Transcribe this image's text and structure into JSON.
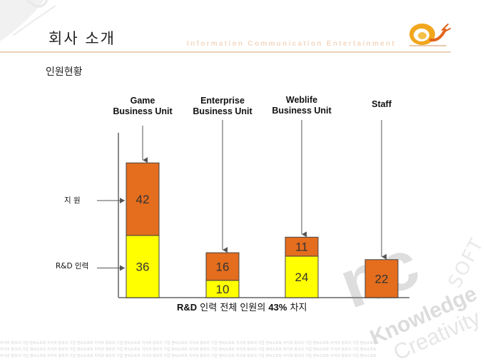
{
  "header": {
    "title": "회사 소개",
    "tagline": "Information  Communication  Entertainment"
  },
  "section_title": "인원현황",
  "row_labels": {
    "support": "지 원",
    "rnd": "R&D 인력"
  },
  "caption": {
    "prefix": "R&D",
    "middle": " 인력 전체 인원의 ",
    "percent": "43%",
    "suffix": " 차지"
  },
  "colors": {
    "support": "#e46d1e",
    "rnd": "#ffff00",
    "axis": "#8a8a8a"
  },
  "watermark": {
    "brand": "nc",
    "soft": "SOFT",
    "knowledge": "Knowledge",
    "creativity": "Creativity",
    "strip_text": "지식과 창조의 기업 엔씨소프트 지식과 창조의 기업 엔씨소프트 지식과 창조의 기업 엔씨소프트 지식과 창조의 기업 엔씨소프트 지식과 창조의 기업 엔씨소프트 지식과 창조의 기업 엔씨소프트 지식과 창조의 기업 엔씨소프트 지식과 창조의 기업 엔씨소프트"
  },
  "chart_data": {
    "type": "bar",
    "stacked": true,
    "categories": [
      [
        "Game",
        "Business Unit"
      ],
      [
        "Enterprise",
        "Business Unit"
      ],
      [
        "Weblife",
        "Business Unit"
      ],
      [
        "Staff"
      ]
    ],
    "series": [
      {
        "name": "R&D 인력",
        "values": [
          36,
          10,
          24,
          null
        ]
      },
      {
        "name": "지 원",
        "values": [
          42,
          16,
          11,
          22
        ]
      }
    ],
    "grid": false,
    "legend": "none"
  }
}
